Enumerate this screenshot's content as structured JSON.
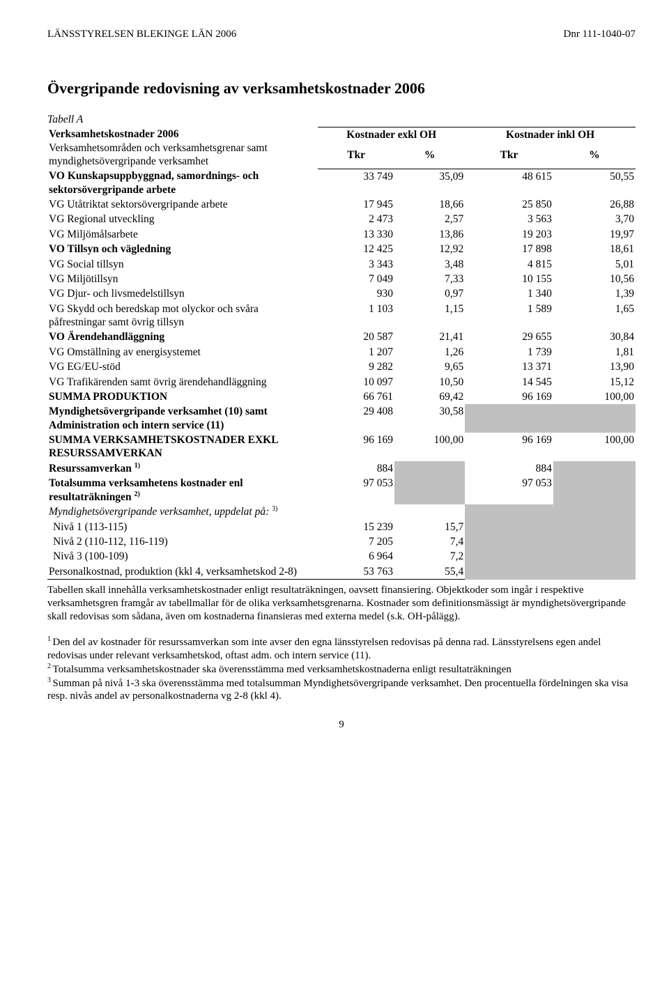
{
  "header_left": "LÄNSSTYRELSEN BLEKINGE LÄN 2006",
  "header_right": "Dnr 111-1040-07",
  "title": "Övergripande redovisning av verksamhetskostnader 2006",
  "table_label": "Tabell A",
  "intro_line1": "Verksamhetskostnader 2006",
  "intro_line2": "Verksamhetsområden och verksamhetsgrenar samt myndighetsövergripande verksamhet",
  "col_head_left": "Kostnader exkl OH",
  "col_head_right": "Kostnader inkl OH",
  "subhead_unit": "Tkr",
  "subhead_pct": "%",
  "rows": [
    {
      "label": "VO Kunskapsuppbyggnad, samordnings- och sektorsövergripande arbete",
      "bold": true,
      "c1": "33 749",
      "c2": "35,09",
      "c3": "48 615",
      "c4": "50,55"
    },
    {
      "label": "VG Utåtriktat sektorsövergripande arbete",
      "bold": false,
      "c1": "17 945",
      "c2": "18,66",
      "c3": "25 850",
      "c4": "26,88"
    },
    {
      "label": "VG Regional utveckling",
      "bold": false,
      "c1": "2 473",
      "c2": "2,57",
      "c3": "3 563",
      "c4": "3,70"
    },
    {
      "label": "VG Miljömålsarbete",
      "bold": false,
      "c1": "13 330",
      "c2": "13,86",
      "c3": "19 203",
      "c4": "19,97"
    },
    {
      "label": "VO Tillsyn och vägledning",
      "bold": true,
      "c1": "12 425",
      "c2": "12,92",
      "c3": "17 898",
      "c4": "18,61"
    },
    {
      "label": "VG Social tillsyn",
      "bold": false,
      "c1": "3 343",
      "c2": "3,48",
      "c3": "4 815",
      "c4": "5,01"
    },
    {
      "label": "VG Miljötillsyn",
      "bold": false,
      "c1": "7 049",
      "c2": "7,33",
      "c3": "10 155",
      "c4": "10,56"
    },
    {
      "label": "VG Djur- och livsmedelstillsyn",
      "bold": false,
      "c1": "930",
      "c2": "0,97",
      "c3": "1 340",
      "c4": "1,39"
    },
    {
      "label": "VG Skydd och beredskap mot olyckor och svåra påfrestningar samt övrig tillsyn",
      "bold": false,
      "c1": "1 103",
      "c2": "1,15",
      "c3": "1 589",
      "c4": "1,65"
    },
    {
      "label": "VO Ärendehandläggning",
      "bold": true,
      "c1": "20 587",
      "c2": "21,41",
      "c3": "29 655",
      "c4": "30,84"
    },
    {
      "label": "VG Omställning av energisystemet",
      "bold": false,
      "c1": "1 207",
      "c2": "1,26",
      "c3": "1 739",
      "c4": "1,81"
    },
    {
      "label": "VG EG/EU-stöd",
      "bold": false,
      "c1": "9 282",
      "c2": "9,65",
      "c3": "13 371",
      "c4": "13,90"
    },
    {
      "label": "VG Trafikärenden samt övrig ärendehandläggning",
      "bold": false,
      "c1": "10 097",
      "c2": "10,50",
      "c3": "14 545",
      "c4": "15,12"
    },
    {
      "label": "SUMMA PRODUKTION",
      "bold": true,
      "c1": "66 761",
      "c2": "69,42",
      "c3": "96 169",
      "c4": "100,00"
    }
  ],
  "row_myndig": {
    "label": "Myndighetsövergripande verksamhet (10)  samt Administration och intern service (11)",
    "c1": "29 408",
    "c2": "30,58"
  },
  "row_summa_exkl": {
    "label": "SUMMA VERKSAMHETSKOSTNADER EXKL RESURSSAMVERKAN",
    "c1": "96 169",
    "c2": "100,00",
    "c3": "96 169",
    "c4": "100,00"
  },
  "row_resurs": {
    "label_pre": "Resurssamverkan ",
    "sup": "1)",
    "c1": "884",
    "c3": "884"
  },
  "row_totalsumma": {
    "label_pre": "Totalsumma verksamhetens kostnader enl resultaträkningen ",
    "sup": "2)",
    "c1": "97 053",
    "c3": "97 053"
  },
  "row_uppdelat": {
    "label_pre": "Myndighetsövergripande verksamhet, uppdelat på: ",
    "sup": "3)"
  },
  "row_niva1": {
    "label": " Nivå 1 (113-115)",
    "c1": "15 239",
    "c2": "15,7"
  },
  "row_niva2": {
    "label": " Nivå 2 (110-112, 116-119)",
    "c1": "7 205",
    "c2": "7,4"
  },
  "row_niva3": {
    "label": " Nivå 3 (100-109)",
    "c1": "6 964",
    "c2": "7,2"
  },
  "row_personal": {
    "label": "Personalkostnad, produktion (kkl 4, verksamhetskod 2-8)",
    "c1": "53 763",
    "c2": "55,4"
  },
  "table_note": "Tabellen skall innehålla verksamhetskostnader enligt resultaträkningen, oavsett finansiering. Objektkoder som ingår i respektive verksamhetsgren framgår av tabellmallar för de olika verksamhetsgrenarna. Kostnader som definitionsmässigt är myndighetsövergripande skall redovisas som sådana, även om kostnaderna finansieras med externa medel (s.k. OH-pålägg).",
  "fn1": "Den del av kostnader för resurssamverkan som inte avser den egna länsstyrelsen redovisas på denna rad. Länsstyrelsens egen andel redovisas under relevant verksamhetskod, oftast adm. och intern service (11).",
  "fn2": "Totalsumma verksamhetskostnader ska överensstämma med verksamhetskostnaderna enligt resultaträkningen",
  "fn3": "Summan på nivå 1-3 ska överensstämma med totalsumman Myndighetsövergripande verksamhet. Den procentuella fördelningen ska visa resp. nivås andel av personalkostnaderna vg 2-8 (kkl 4).",
  "page_number": "9"
}
